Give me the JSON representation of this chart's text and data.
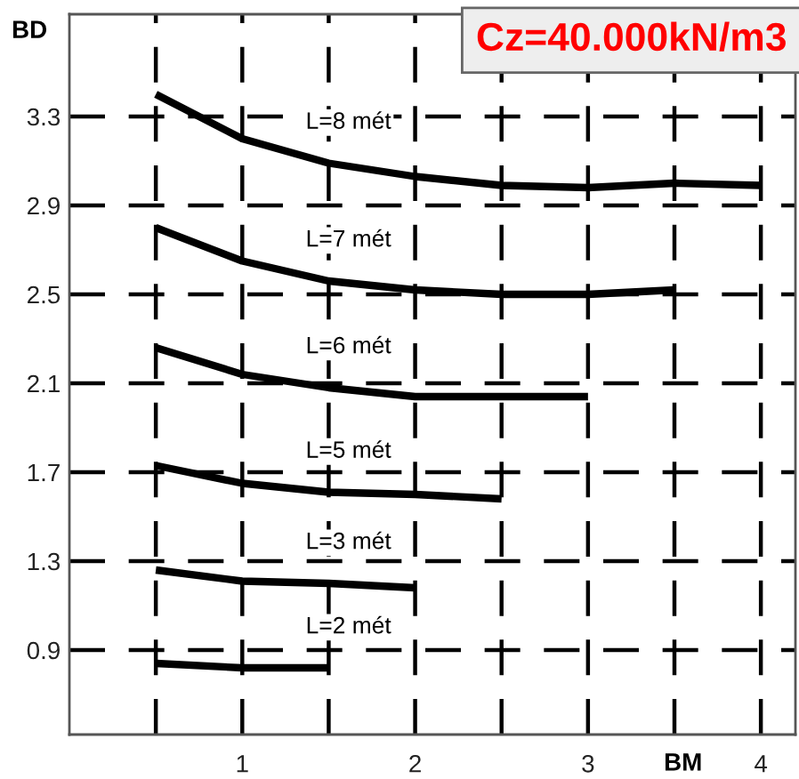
{
  "chart_data": {
    "type": "line",
    "title": "Cz=40.000kN/m3",
    "xlabel": "BM",
    "ylabel": "BD",
    "x": [
      0.5,
      1,
      1.5,
      2,
      2.5,
      3,
      3.5,
      4
    ],
    "series": [
      {
        "name": "L=8 mét",
        "color": "#000000",
        "values": [
          3.4,
          3.2,
          3.09,
          3.03,
          2.99,
          2.98,
          3.0,
          2.99
        ]
      },
      {
        "name": "L=7 mét",
        "color": "#000000",
        "values": [
          2.8,
          2.65,
          2.56,
          2.52,
          2.5,
          2.5,
          2.52,
          null
        ]
      },
      {
        "name": "L=6 mét",
        "color": "#000000",
        "values": [
          2.26,
          2.14,
          2.08,
          2.04,
          2.04,
          2.04,
          null,
          null
        ]
      },
      {
        "name": "L=5 mét",
        "color": "#000000",
        "values": [
          1.73,
          1.65,
          1.61,
          1.6,
          1.58,
          null,
          null,
          null
        ]
      },
      {
        "name": "L=3 mét",
        "color": "#000000",
        "values": [
          1.26,
          1.21,
          1.2,
          1.18,
          null,
          null,
          null,
          null
        ]
      },
      {
        "name": "L=2 mét",
        "color": "#000000",
        "values": [
          0.84,
          0.82,
          0.82,
          null,
          null,
          null,
          null,
          null
        ]
      }
    ],
    "xlim": [
      0,
      4.2
    ],
    "ylim": [
      0.52,
      3.76
    ],
    "xticks": [
      {
        "value": 0.5,
        "label": null
      },
      1,
      {
        "value": 1.5,
        "label": null
      },
      2,
      {
        "value": 2.5,
        "label": null
      },
      3,
      {
        "value": 3.5,
        "label": null
      },
      4
    ],
    "yticks": [
      0.9,
      1.3,
      1.7,
      2.1,
      2.5,
      2.9,
      3.3
    ],
    "grid": true,
    "legend": false,
    "marker": "none",
    "line_style": "solid"
  }
}
